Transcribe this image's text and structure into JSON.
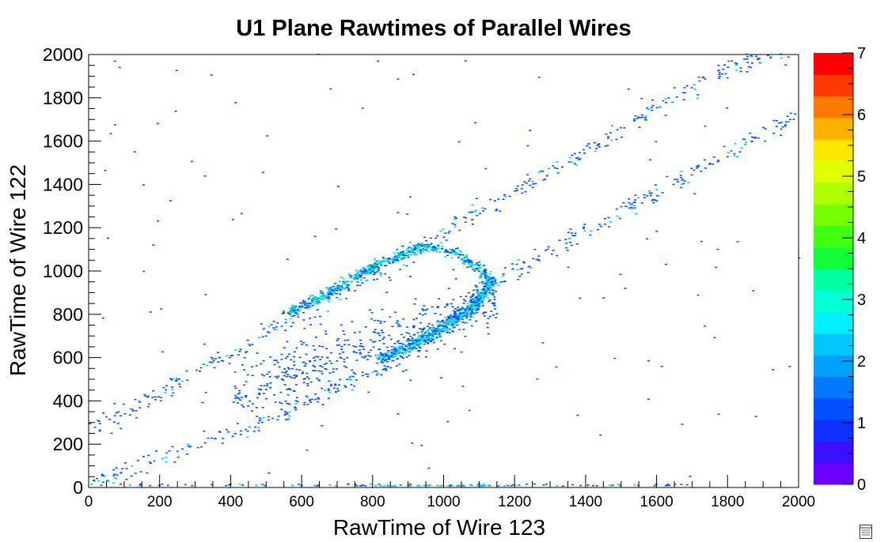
{
  "chart_data": {
    "type": "heatmap",
    "title": "U1 Plane Rawtimes of Parallel Wires",
    "xlabel": "RawTime of Wire 123",
    "ylabel": "RawTime of Wire 122",
    "xlim": [
      0,
      2000
    ],
    "ylim": [
      0,
      2000
    ],
    "x_ticks": [
      "0",
      "200",
      "400",
      "600",
      "800",
      "1000",
      "1200",
      "1400",
      "1600",
      "1800",
      "2000"
    ],
    "y_ticks": [
      "0",
      "200",
      "400",
      "600",
      "800",
      "1000",
      "1200",
      "1400",
      "1600",
      "1800",
      "2000"
    ],
    "colorbar": {
      "min": 0,
      "max": 7,
      "levels": 20,
      "tick_labels": [
        "0",
        "1",
        "2",
        "3",
        "4",
        "5",
        "6",
        "7"
      ],
      "palette": [
        "#6a00ff",
        "#3a10ff",
        "#1030ff",
        "#0050ff",
        "#0078ff",
        "#00a0ff",
        "#00c8ff",
        "#00f0ff",
        "#00ffd4",
        "#00ffa0",
        "#00ff70",
        "#10ff38",
        "#40ff10",
        "#78ff00",
        "#b0ff00",
        "#e0ff00",
        "#ffe800",
        "#ffb000",
        "#ff7800",
        "#ff3a00",
        "#ff0000"
      ]
    },
    "grid": false,
    "features": [
      {
        "name": "upper diagonal band",
        "path": [
          [
            0,
            260
          ],
          [
            400,
            620
          ],
          [
            800,
            980
          ],
          [
            1000,
            1180
          ],
          [
            1400,
            1560
          ],
          [
            1800,
            1940
          ],
          [
            2000,
            2040
          ]
        ],
        "intensity": "low"
      },
      {
        "name": "lower diagonal band",
        "path": [
          [
            0,
            20
          ],
          [
            400,
            240
          ],
          [
            800,
            540
          ],
          [
            1000,
            740
          ],
          [
            1200,
            1000
          ],
          [
            1600,
            1360
          ],
          [
            2000,
            1720
          ]
        ],
        "intensity": "low"
      },
      {
        "name": "loop upper arm",
        "path": [
          [
            560,
            800
          ],
          [
            700,
            920
          ],
          [
            820,
            1040
          ],
          [
            940,
            1110
          ],
          [
            1020,
            1090
          ],
          [
            1100,
            1010
          ],
          [
            1130,
            940
          ]
        ],
        "intensity": "high"
      },
      {
        "name": "loop lower arm",
        "path": [
          [
            1130,
            940
          ],
          [
            1080,
            830
          ],
          [
            980,
            720
          ],
          [
            900,
            650
          ],
          [
            820,
            590
          ]
        ],
        "intensity": "high"
      }
    ]
  },
  "ui": {
    "corner_icon": "editor-icon"
  }
}
